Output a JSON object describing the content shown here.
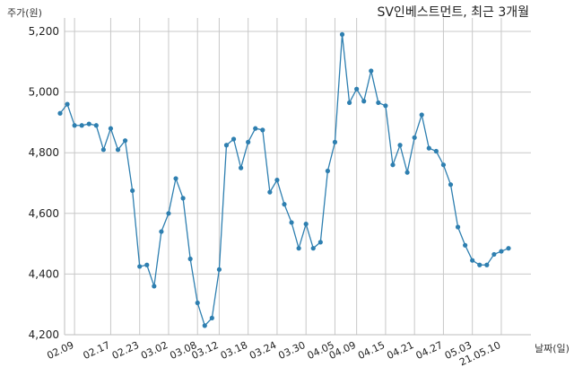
{
  "chart_data": {
    "type": "line",
    "title": "SV인베스트먼트, 최근 3개월",
    "ylabel": "주가(원)",
    "xlabel": "날짜(일)",
    "ylim": [
      4200,
      5200
    ],
    "yticks": [
      4200,
      4400,
      4600,
      4800,
      5000,
      5200
    ],
    "ytick_labels": [
      "4,200",
      "4,400",
      "4,600",
      "4,800",
      "5,000",
      "5,200"
    ],
    "xtick_labels": [
      "02.09",
      "02.17",
      "02.23",
      "03.02",
      "03.08",
      "03.12",
      "03.18",
      "03.24",
      "03.30",
      "04.05",
      "04.09",
      "04.15",
      "04.21",
      "04.27",
      "05.03",
      "21.05.10"
    ],
    "xtick_index": [
      2,
      7,
      11,
      15,
      19,
      22,
      26,
      30,
      34,
      38,
      41,
      45,
      49,
      53,
      57,
      61
    ],
    "grid": true,
    "line_color": "#2e7fb0",
    "values": [
      4930,
      4960,
      4890,
      4890,
      4895,
      4890,
      4810,
      4880,
      4810,
      4840,
      4675,
      4425,
      4430,
      4360,
      4540,
      4600,
      4715,
      4650,
      4450,
      4305,
      4230,
      4255,
      4415,
      4825,
      4845,
      4750,
      4835,
      4880,
      4875,
      4670,
      4710,
      4630,
      4570,
      4485,
      4565,
      4485,
      4505,
      4740,
      4835,
      5190,
      4965,
      5010,
      4970,
      5070,
      4965,
      4955,
      4760,
      4825,
      4735,
      4850,
      4925,
      4815,
      4805,
      4760,
      4695,
      4555,
      4495,
      4445,
      4430,
      4430,
      4465,
      4475,
      4485
    ]
  }
}
